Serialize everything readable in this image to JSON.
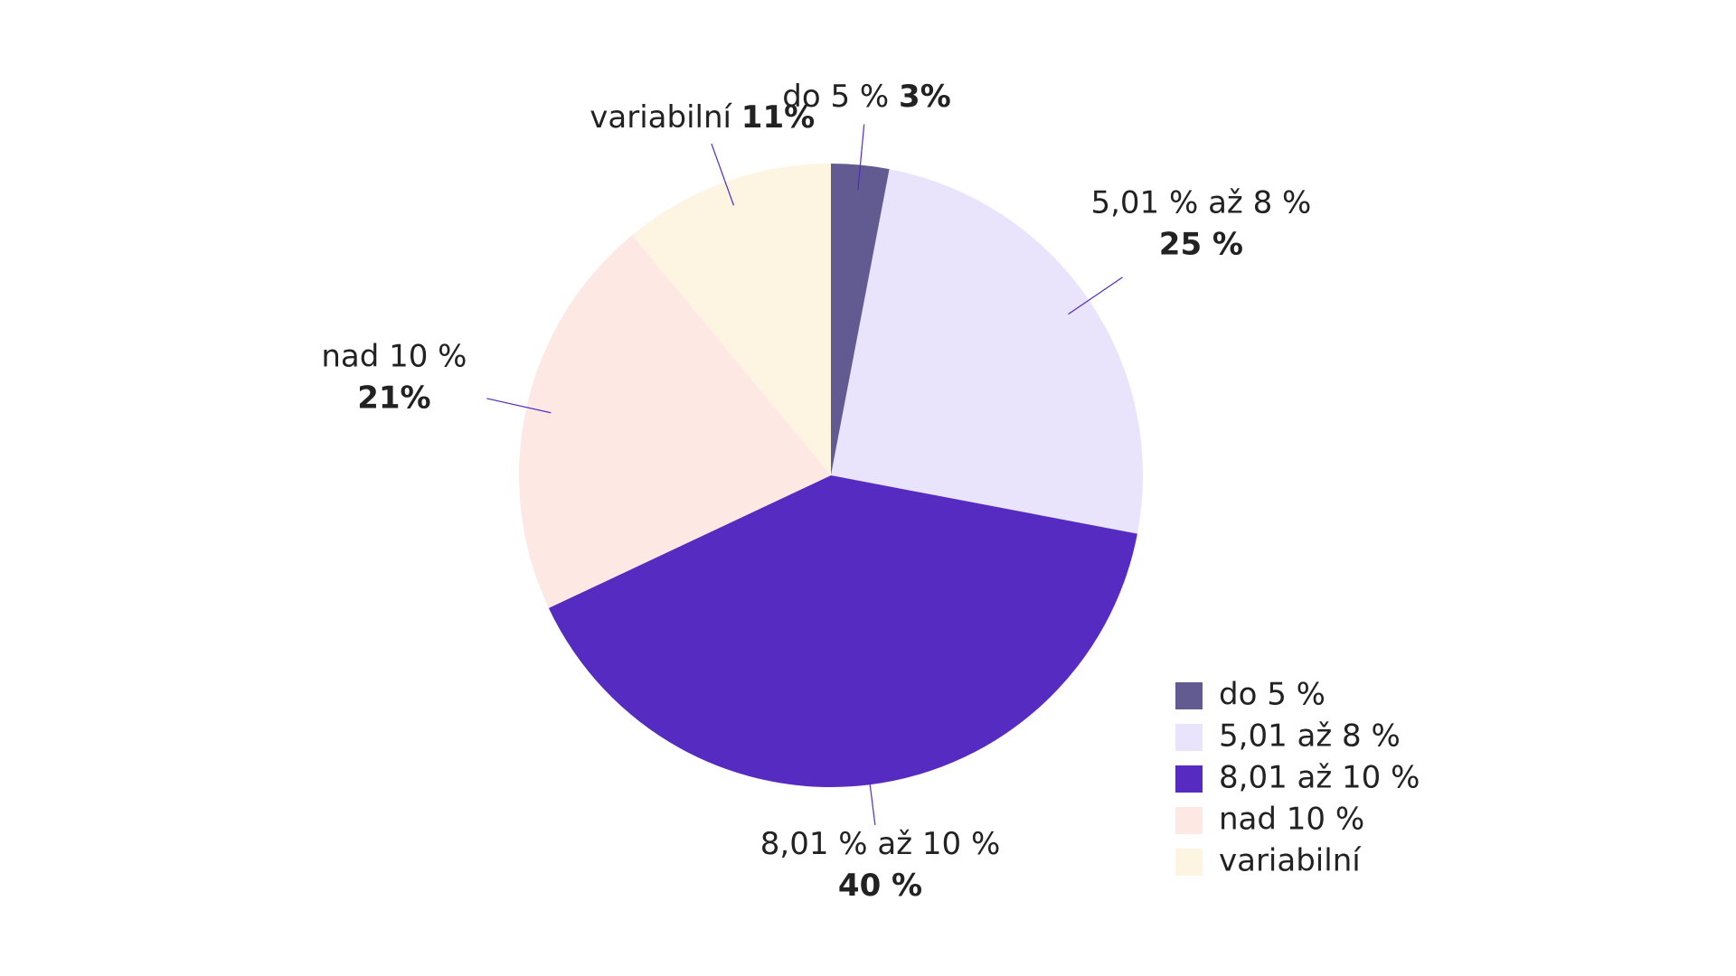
{
  "chart_data": {
    "type": "pie",
    "categories": [
      "do 5 %",
      "5,01 až 8 %",
      "8,01 až 10 %",
      "nad 10 %",
      "variabilní"
    ],
    "labels": [
      "do 5 %",
      "5,01 % až 8 %",
      "8,01 % až 10 %",
      "nad 10 %",
      "variabilní"
    ],
    "values": [
      3,
      25,
      40,
      21,
      11
    ],
    "value_labels": [
      "3%",
      "25 %",
      "40 %",
      "21%",
      "11%"
    ],
    "colors": [
      "#615b92",
      "#e9e3fb",
      "#552bc2",
      "#fde8e4",
      "#fdf4e2"
    ],
    "legend": "bottom-right"
  }
}
